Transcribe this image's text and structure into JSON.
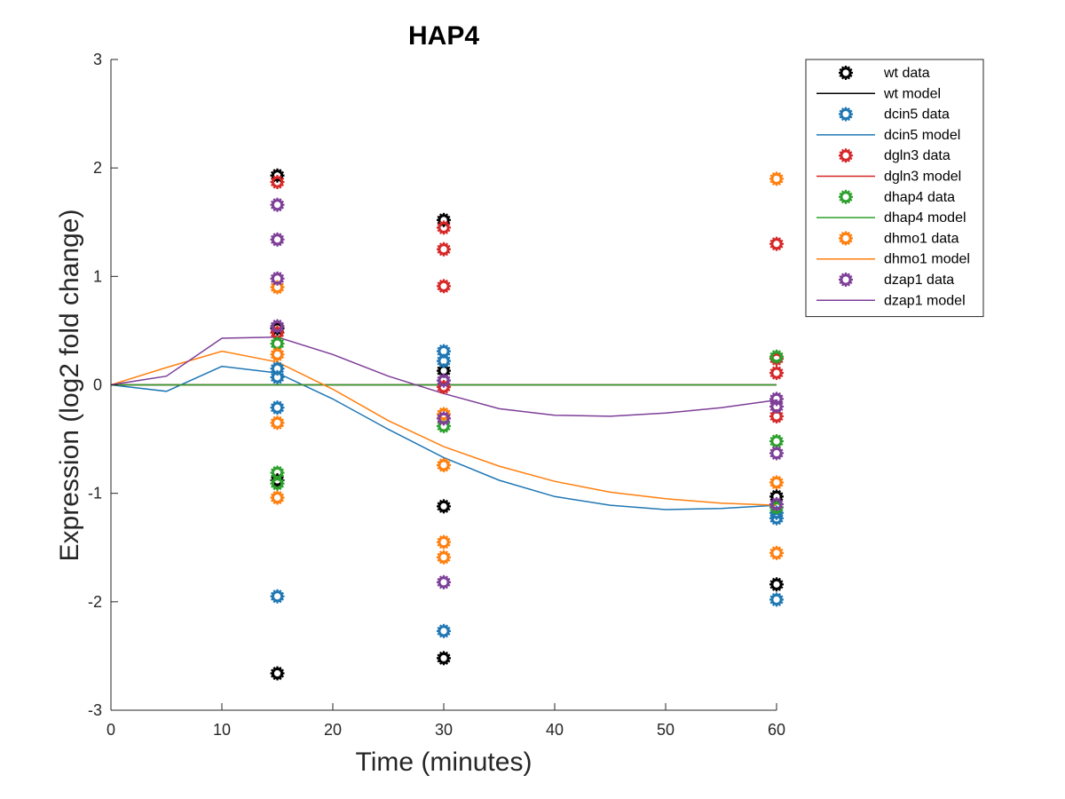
{
  "chart_data": {
    "type": "line",
    "title": "HAP4",
    "xlabel": "Time (minutes)",
    "ylabel": "Expression (log2 fold change)",
    "xlim": [
      0,
      60
    ],
    "ylim": [
      -3,
      3
    ],
    "xticks": [
      0,
      10,
      20,
      30,
      40,
      50,
      60
    ],
    "yticks": [
      -3,
      -2,
      -1,
      0,
      1,
      2,
      3
    ],
    "grid": false,
    "legend_position": "top-right outside",
    "series": [
      {
        "name": "wt",
        "color": "#000000",
        "data_label": "wt data",
        "model_label": "wt model",
        "data": [
          [
            15,
            1.93
          ],
          [
            15,
            0.52
          ],
          [
            15,
            -0.88
          ],
          [
            15,
            -2.66
          ],
          [
            30,
            1.52
          ],
          [
            30,
            0.13
          ],
          [
            30,
            -1.12
          ],
          [
            30,
            -2.52
          ],
          [
            60,
            -1.03
          ],
          [
            60,
            -1.84
          ]
        ],
        "model": [
          [
            0,
            0
          ],
          [
            60,
            0
          ]
        ]
      },
      {
        "name": "dcin5",
        "color": "#1f77b4",
        "data_label": "dcin5 data",
        "model_label": "dcin5 model",
        "data": [
          [
            15,
            0.15
          ],
          [
            15,
            0.07
          ],
          [
            15,
            -0.21
          ],
          [
            15,
            -1.95
          ],
          [
            30,
            0.31
          ],
          [
            30,
            0.22
          ],
          [
            30,
            -2.27
          ],
          [
            60,
            -1.18
          ],
          [
            60,
            -1.23
          ],
          [
            60,
            -1.98
          ]
        ],
        "model": [
          [
            0,
            0
          ],
          [
            5,
            -0.06
          ],
          [
            10,
            0.17
          ],
          [
            15,
            0.11
          ],
          [
            20,
            -0.13
          ],
          [
            25,
            -0.41
          ],
          [
            30,
            -0.67
          ],
          [
            35,
            -0.88
          ],
          [
            40,
            -1.03
          ],
          [
            45,
            -1.11
          ],
          [
            50,
            -1.15
          ],
          [
            55,
            -1.14
          ],
          [
            60,
            -1.11
          ]
        ]
      },
      {
        "name": "dgln3",
        "color": "#d62728",
        "data_label": "dgln3 data",
        "model_label": "dgln3 model",
        "data": [
          [
            15,
            1.87
          ],
          [
            15,
            0.48
          ],
          [
            30,
            1.45
          ],
          [
            30,
            1.25
          ],
          [
            30,
            0.91
          ],
          [
            30,
            -0.02
          ],
          [
            60,
            1.3
          ],
          [
            60,
            0.24
          ],
          [
            60,
            0.11
          ],
          [
            60,
            -0.29
          ]
        ],
        "model": [
          [
            0,
            0
          ],
          [
            60,
            0
          ]
        ]
      },
      {
        "name": "dhap4",
        "color": "#2ca02c",
        "data_label": "dhap4 data",
        "model_label": "dhap4 model",
        "data": [
          [
            15,
            0.38
          ],
          [
            15,
            -0.81
          ],
          [
            15,
            -0.91
          ],
          [
            30,
            -0.38
          ],
          [
            60,
            0.26
          ],
          [
            60,
            -0.52
          ],
          [
            60,
            -1.13
          ]
        ],
        "model": [
          [
            0,
            0
          ],
          [
            60,
            0
          ]
        ]
      },
      {
        "name": "dhmo1",
        "color": "#ff7f0e",
        "data_label": "dhmo1 data",
        "model_label": "dhmo1 model",
        "data": [
          [
            15,
            0.9
          ],
          [
            15,
            0.28
          ],
          [
            15,
            -0.35
          ],
          [
            15,
            -1.04
          ],
          [
            30,
            -0.27
          ],
          [
            30,
            -0.74
          ],
          [
            30,
            -1.45
          ],
          [
            30,
            -1.59
          ],
          [
            60,
            1.9
          ],
          [
            60,
            -0.9
          ],
          [
            60,
            -1.55
          ]
        ],
        "model": [
          [
            0,
            0
          ],
          [
            5,
            0.16
          ],
          [
            10,
            0.31
          ],
          [
            15,
            0.21
          ],
          [
            20,
            -0.04
          ],
          [
            25,
            -0.33
          ],
          [
            30,
            -0.57
          ],
          [
            35,
            -0.75
          ],
          [
            40,
            -0.89
          ],
          [
            45,
            -0.99
          ],
          [
            50,
            -1.05
          ],
          [
            55,
            -1.09
          ],
          [
            60,
            -1.11
          ]
        ]
      },
      {
        "name": "dzap1",
        "color": "#7e3f98",
        "data_label": "dzap1 data",
        "model_label": "dzap1 model",
        "data": [
          [
            15,
            1.66
          ],
          [
            15,
            1.34
          ],
          [
            15,
            0.98
          ],
          [
            15,
            0.54
          ],
          [
            30,
            0.04
          ],
          [
            30,
            -0.31
          ],
          [
            30,
            -1.82
          ],
          [
            60,
            -0.13
          ],
          [
            60,
            -0.2
          ],
          [
            60,
            -0.63
          ],
          [
            60,
            -1.1
          ]
        ],
        "model": [
          [
            0,
            0
          ],
          [
            5,
            0.08
          ],
          [
            10,
            0.43
          ],
          [
            15,
            0.44
          ],
          [
            20,
            0.28
          ],
          [
            25,
            0.08
          ],
          [
            30,
            -0.08
          ],
          [
            35,
            -0.22
          ],
          [
            40,
            -0.28
          ],
          [
            45,
            -0.29
          ],
          [
            50,
            -0.26
          ],
          [
            55,
            -0.21
          ],
          [
            60,
            -0.14
          ]
        ]
      }
    ]
  }
}
